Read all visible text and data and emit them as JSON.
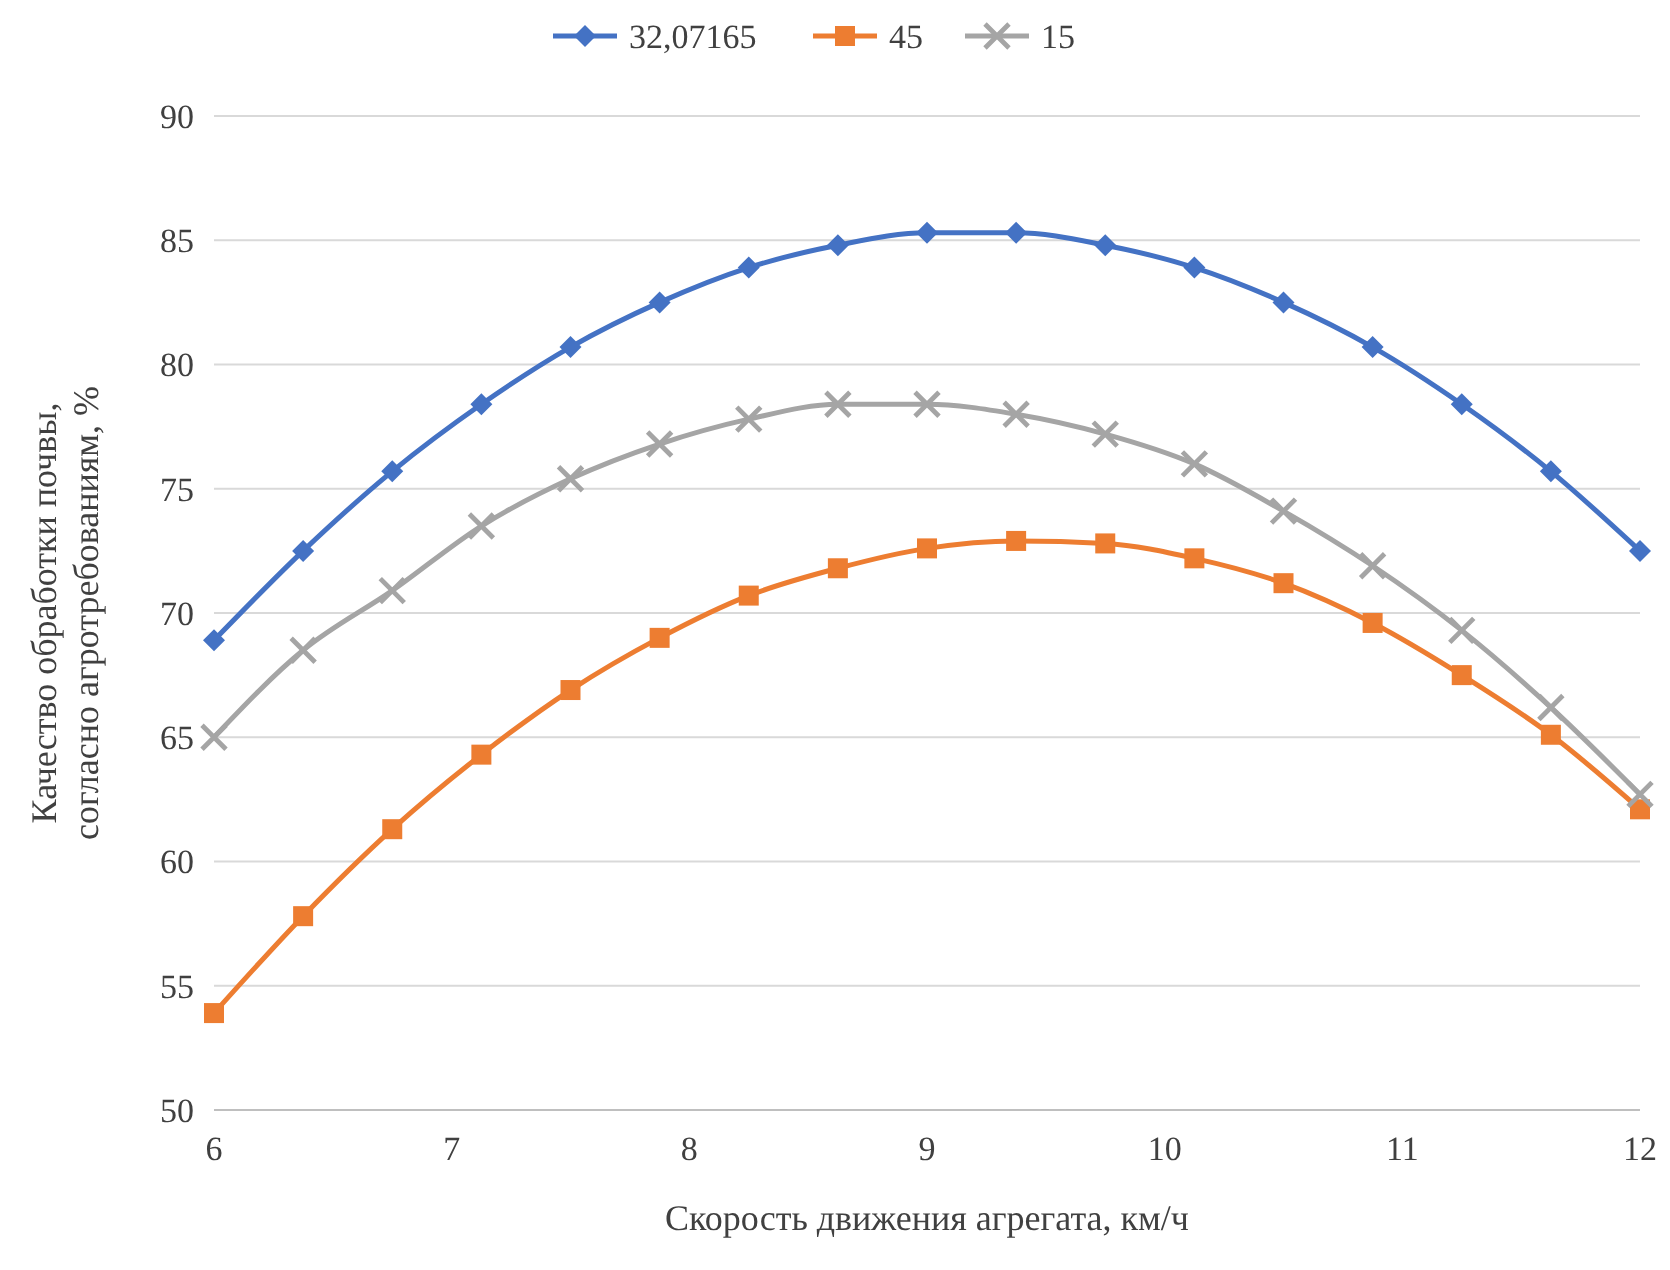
{
  "chart_data": {
    "type": "line",
    "xlabel": "Скорость движения агрегата, км/ч",
    "ylabel": "Качество обработки почвы, согласно агротребованиям, %",
    "x": [
      6,
      6.375,
      6.75,
      7.125,
      7.5,
      7.875,
      8.25,
      8.625,
      9,
      9.375,
      9.75,
      10.125,
      10.5,
      10.875,
      11.25,
      11.625,
      12
    ],
    "series": [
      {
        "name": "32,07165",
        "color": "#4472c4",
        "marker": "diamond",
        "values": [
          68.9,
          72.5,
          75.7,
          78.4,
          80.7,
          82.5,
          83.9,
          84.8,
          85.3,
          85.3,
          84.8,
          83.9,
          82.5,
          80.7,
          78.4,
          75.7,
          72.5
        ]
      },
      {
        "name": "45",
        "color": "#ed7d31",
        "marker": "square",
        "values": [
          53.9,
          57.8,
          61.3,
          64.3,
          66.9,
          69.0,
          70.7,
          71.8,
          72.6,
          72.9,
          72.8,
          72.2,
          71.2,
          69.6,
          67.5,
          65.1,
          62.1
        ]
      },
      {
        "name": "15",
        "color": "#a5a5a5",
        "marker": "cross",
        "values": [
          65.0,
          68.5,
          70.9,
          73.5,
          75.4,
          76.8,
          77.8,
          78.4,
          78.4,
          78.0,
          77.2,
          76.0,
          74.1,
          71.9,
          69.3,
          66.2,
          62.7
        ]
      }
    ],
    "xlim": [
      6,
      12
    ],
    "xticks": [
      6,
      7,
      8,
      9,
      10,
      11,
      12
    ],
    "ylim": [
      50,
      90
    ],
    "yticks": [
      50,
      55,
      60,
      65,
      70,
      75,
      80,
      85,
      90
    ],
    "grid": "y",
    "legend": "top"
  }
}
